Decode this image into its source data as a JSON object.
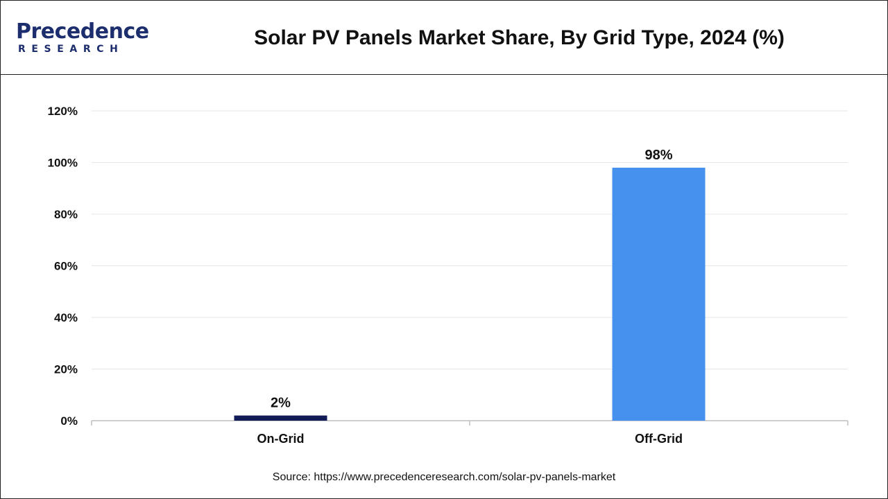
{
  "brand": {
    "name": "Precedence",
    "sub": "RESEARCH",
    "color": "#1d2e6e"
  },
  "chart_data": {
    "type": "bar",
    "title": "Solar PV Panels Market Share, By Grid Type, 2024 (%)",
    "categories": [
      "On-Grid",
      "Off-Grid"
    ],
    "values": [
      2,
      98
    ],
    "data_labels": [
      "2%",
      "98%"
    ],
    "colors": [
      "#131b57",
      "#4591ed"
    ],
    "ylim": [
      0,
      120
    ],
    "yticks": [
      0,
      20,
      40,
      60,
      80,
      100,
      120
    ],
    "ytick_labels": [
      "0%",
      "20%",
      "40%",
      "60%",
      "80%",
      "100%",
      "120%"
    ],
    "grid": true,
    "xlabel": "",
    "ylabel": ""
  },
  "source": "Source: https://www.precedenceresearch.com/solar-pv-panels-market"
}
